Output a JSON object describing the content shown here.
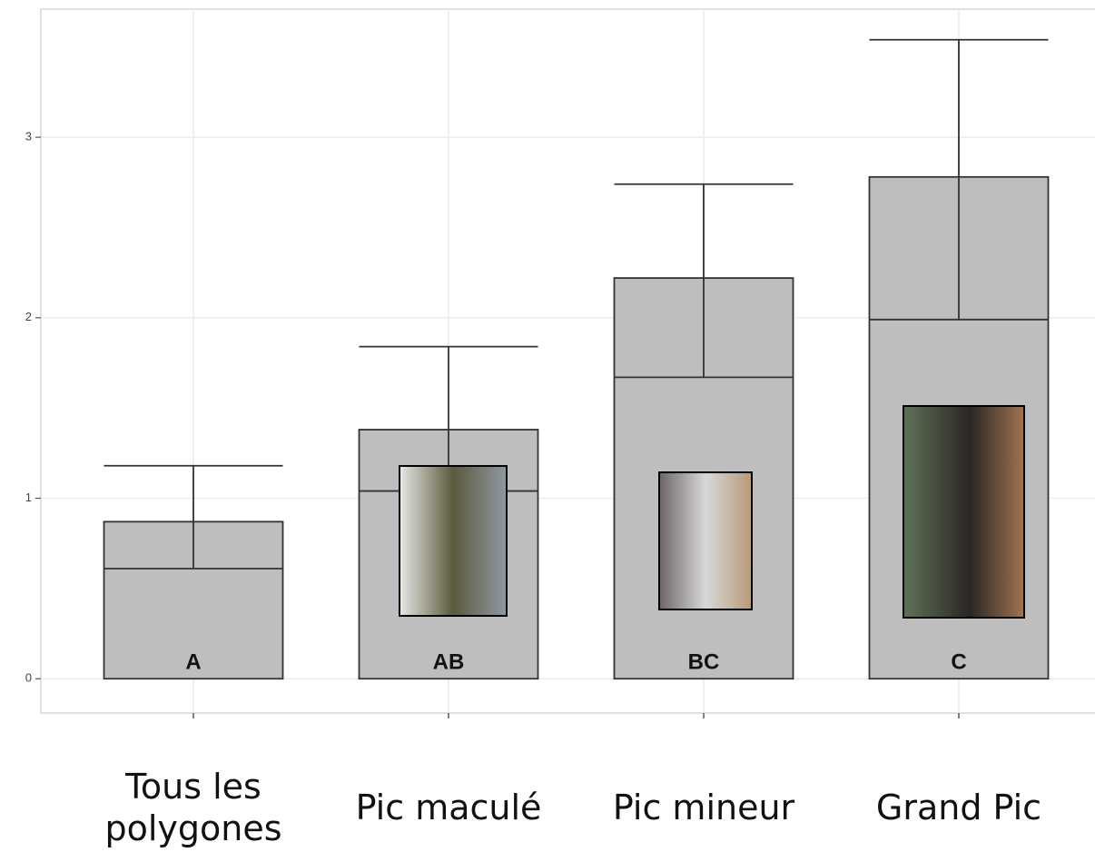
{
  "chart_data": {
    "type": "bar",
    "categories": [
      "Tous les polygones",
      "Pic maculé",
      "Pic mineur",
      "Grand Pic"
    ],
    "values": [
      0.87,
      1.38,
      2.22,
      2.78
    ],
    "lower": [
      0.61,
      1.04,
      1.67,
      1.99
    ],
    "upper": [
      1.18,
      1.84,
      2.74,
      3.54
    ],
    "value_labels": [
      "A",
      "AB",
      "BC",
      "C"
    ],
    "color": "#bebebe",
    "ylim": [
      -0.19,
      3.71
    ],
    "yticks": [
      0,
      1,
      2,
      3
    ],
    "grid": true
  }
}
